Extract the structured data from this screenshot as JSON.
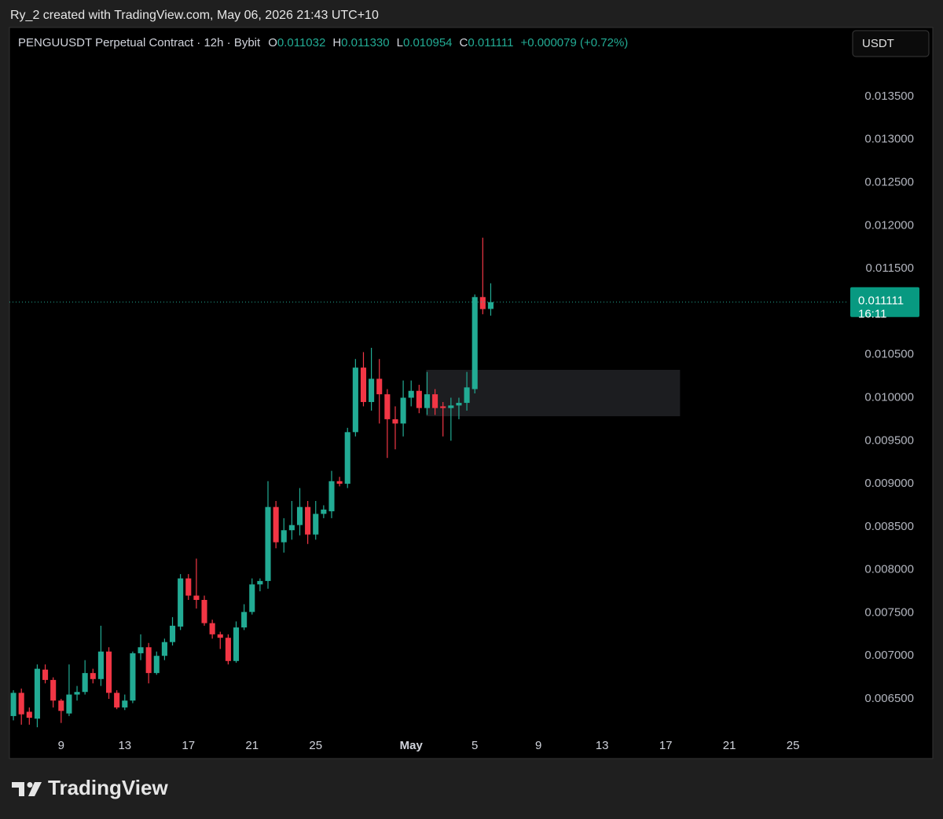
{
  "caption": "Ry_2 created with TradingView.com, May 06, 2026 21:43 UTC+10",
  "brand": "TradingView",
  "chart_data": {
    "type": "candlestick",
    "title": "PENGUUSDT Perpetual Contract · 12h · Bybit",
    "legend": [
      {
        "key": "O",
        "value": "0.011032"
      },
      {
        "key": "H",
        "value": "0.011330"
      },
      {
        "key": "L",
        "value": "0.010954"
      },
      {
        "key": "C",
        "value": "0.011111"
      }
    ],
    "change": "+0.000079 (+0.72%)",
    "currency": "USDT",
    "last_price_label": "0.011111",
    "countdown": "16:11",
    "up_color": "#22ab94",
    "down_color": "#f23645",
    "open": [
      0.0063,
      0.00657,
      0.00635,
      0.00627,
      0.00684,
      0.00672,
      0.00648,
      0.00633,
      0.00655,
      0.00658,
      0.0068,
      0.00673,
      0.00705,
      0.00657,
      0.0064,
      0.00648,
      0.00703,
      0.0071,
      0.0068,
      0.007,
      0.00716,
      0.00734,
      0.0079,
      0.0077,
      0.00765,
      0.00738,
      0.00725,
      0.00721,
      0.00694,
      0.00733,
      0.00751,
      0.00783,
      0.00787,
      0.00873,
      0.00832,
      0.00846,
      0.00852,
      0.00873,
      0.00841,
      0.00865,
      0.00868,
      0.00903,
      0.009,
      0.0096,
      0.01035,
      0.00995,
      0.01022,
      0.01004,
      0.00975,
      0.0097,
      0.01,
      0.01008,
      0.00988,
      0.01004,
      0.0099,
      0.00988,
      0.00991,
      0.00994,
      0.0101,
      0.01117,
      0.011032
    ],
    "high": [
      0.0066,
      0.00662,
      0.0064,
      0.0069,
      0.0069,
      0.00675,
      0.0065,
      0.0069,
      0.00665,
      0.00695,
      0.00685,
      0.00735,
      0.0071,
      0.0066,
      0.00655,
      0.00705,
      0.00725,
      0.00715,
      0.00705,
      0.0072,
      0.00745,
      0.00795,
      0.00795,
      0.00813,
      0.0077,
      0.00742,
      0.00728,
      0.00725,
      0.0074,
      0.0076,
      0.0079,
      0.0079,
      0.00903,
      0.0088,
      0.0086,
      0.0088,
      0.00895,
      0.0088,
      0.0088,
      0.00875,
      0.00915,
      0.00908,
      0.00965,
      0.01045,
      0.01053,
      0.01058,
      0.01045,
      0.0101,
      0.0099,
      0.0102,
      0.0102,
      0.01015,
      0.0103,
      0.0101,
      0.00995,
      0.01,
      0.01,
      0.0103,
      0.0112,
      0.01186,
      0.01133
    ],
    "low": [
      0.00625,
      0.0062,
      0.0062,
      0.00617,
      0.00668,
      0.0064,
      0.00622,
      0.0063,
      0.00648,
      0.00655,
      0.00668,
      0.00665,
      0.0065,
      0.00638,
      0.00637,
      0.00645,
      0.00695,
      0.00668,
      0.00678,
      0.00695,
      0.00712,
      0.0073,
      0.00765,
      0.00755,
      0.00735,
      0.0072,
      0.00708,
      0.0069,
      0.00692,
      0.0073,
      0.00748,
      0.00775,
      0.00778,
      0.00825,
      0.0082,
      0.00835,
      0.0084,
      0.0083,
      0.00835,
      0.0086,
      0.0086,
      0.00897,
      0.00895,
      0.00955,
      0.0099,
      0.00985,
      0.0097,
      0.0093,
      0.0094,
      0.00955,
      0.0099,
      0.00982,
      0.0098,
      0.0098,
      0.00955,
      0.0095,
      0.00975,
      0.00985,
      0.01005,
      0.01097,
      0.010954
    ],
    "close": [
      0.00657,
      0.00632,
      0.00628,
      0.00685,
      0.00672,
      0.00648,
      0.00636,
      0.00655,
      0.00658,
      0.0068,
      0.00673,
      0.00705,
      0.00657,
      0.0064,
      0.00648,
      0.00703,
      0.0071,
      0.0068,
      0.007,
      0.00716,
      0.00735,
      0.0079,
      0.0077,
      0.00765,
      0.00738,
      0.00725,
      0.00721,
      0.00694,
      0.00733,
      0.00751,
      0.00783,
      0.00787,
      0.00873,
      0.00832,
      0.00846,
      0.00852,
      0.00873,
      0.00841,
      0.00865,
      0.0087,
      0.00903,
      0.009,
      0.0096,
      0.01035,
      0.00995,
      0.01022,
      0.01004,
      0.00975,
      0.0097,
      0.01,
      0.01008,
      0.00988,
      0.01004,
      0.00988,
      0.00988,
      0.00991,
      0.00994,
      0.01012,
      0.01117,
      0.01103,
      0.011111
    ],
    "zone": {
      "x": [
        51.9,
        83.8
      ],
      "y": [
        0.009785,
        0.010324
      ]
    },
    "xlim": [
      -0.5,
      105
    ],
    "xticks": [
      {
        "value": 6,
        "label": "9"
      },
      {
        "value": 14,
        "label": "13"
      },
      {
        "value": 22,
        "label": "17"
      },
      {
        "value": 30,
        "label": "21"
      },
      {
        "value": 38,
        "label": "25"
      },
      {
        "value": 50,
        "label": "May"
      },
      {
        "value": 58,
        "label": "5"
      },
      {
        "value": 66,
        "label": "9"
      },
      {
        "value": 74,
        "label": "13"
      },
      {
        "value": 82,
        "label": "17"
      },
      {
        "value": 90,
        "label": "21"
      },
      {
        "value": 98,
        "label": "25"
      }
    ],
    "ylim": [
      0.006135,
      0.014303
    ],
    "yticks": [
      {
        "value": 0.0065,
        "label": "0.006500"
      },
      {
        "value": 0.007,
        "label": "0.007000"
      },
      {
        "value": 0.0075,
        "label": "0.007500"
      },
      {
        "value": 0.008,
        "label": "0.008000"
      },
      {
        "value": 0.0085,
        "label": "0.008500"
      },
      {
        "value": 0.009,
        "label": "0.009000"
      },
      {
        "value": 0.0095,
        "label": "0.009500"
      },
      {
        "value": 0.01,
        "label": "0.010000"
      },
      {
        "value": 0.0105,
        "label": "0.010500"
      },
      {
        "value": 0.011,
        "label": "0.011000"
      },
      {
        "value": 0.0115,
        "label": "0.011500"
      },
      {
        "value": 0.012,
        "label": "0.012000"
      },
      {
        "value": 0.0125,
        "label": "0.012500"
      },
      {
        "value": 0.013,
        "label": "0.013000"
      },
      {
        "value": 0.0135,
        "label": "0.013500"
      }
    ]
  }
}
